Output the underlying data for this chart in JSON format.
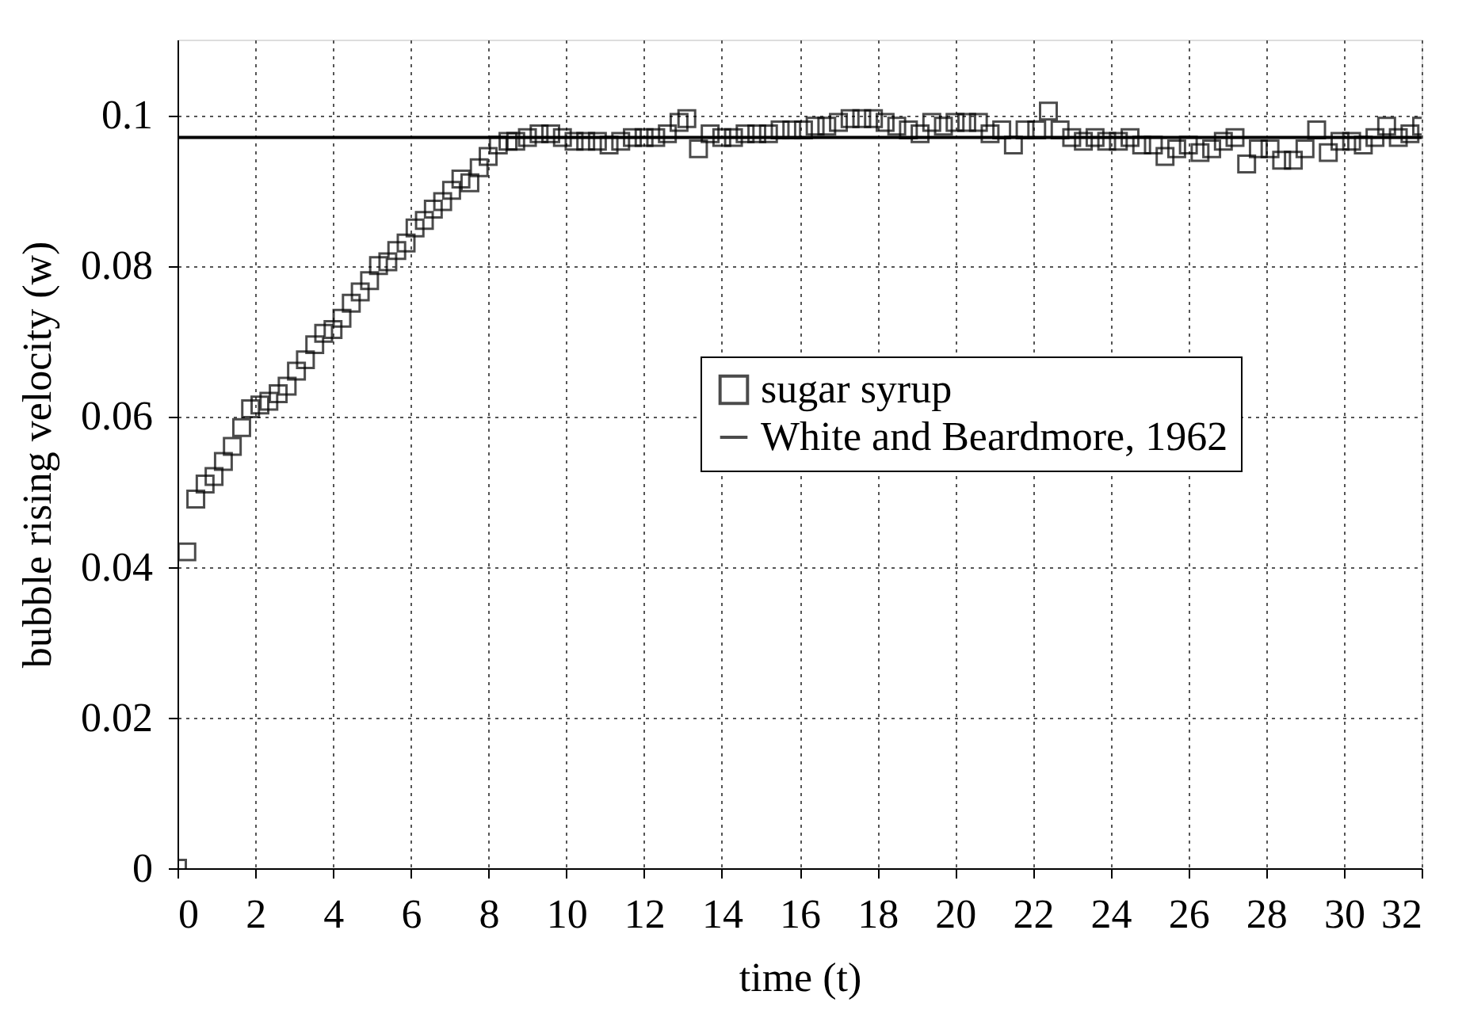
{
  "chart_data": {
    "type": "scatter",
    "xlabel": "time (t)",
    "ylabel": "bubble rising velocity (w)",
    "xlim": [
      0,
      32
    ],
    "ylim": [
      0,
      0.11
    ],
    "xticks": [
      0,
      2,
      4,
      6,
      8,
      10,
      12,
      14,
      16,
      18,
      20,
      22,
      24,
      26,
      28,
      30,
      32
    ],
    "yticks": [
      0,
      0.02,
      0.04,
      0.06,
      0.08,
      0.1
    ],
    "grid": true,
    "legend": "right",
    "series": [
      {
        "name": "sugar syrup",
        "marker": "square",
        "color": "#000000",
        "x": [
          0,
          0.24,
          0.47,
          0.71,
          0.94,
          1.18,
          1.41,
          1.65,
          1.88,
          2.12,
          2.35,
          2.59,
          2.82,
          3.06,
          3.29,
          3.53,
          3.76,
          4.0,
          4.23,
          4.47,
          4.7,
          4.94,
          5.17,
          5.41,
          5.64,
          5.88,
          6.11,
          6.35,
          6.58,
          6.82,
          7.05,
          7.29,
          7.52,
          7.76,
          7.99,
          8.25,
          8.5,
          8.7,
          9.0,
          9.3,
          9.6,
          9.9,
          10.2,
          10.5,
          10.8,
          11.1,
          11.4,
          11.7,
          12.0,
          12.3,
          12.6,
          12.9,
          13.1,
          13.4,
          13.7,
          14.0,
          14.3,
          14.6,
          14.9,
          15.2,
          15.5,
          15.8,
          16.1,
          16.4,
          16.7,
          17.0,
          17.3,
          17.6,
          17.9,
          18.2,
          18.5,
          18.8,
          19.1,
          19.4,
          19.7,
          20.0,
          20.3,
          20.6,
          20.9,
          21.2,
          21.5,
          21.8,
          22.1,
          22.4,
          22.7,
          23.0,
          23.3,
          23.6,
          23.9,
          24.2,
          24.5,
          24.8,
          25.1,
          25.4,
          25.7,
          26.0,
          26.3,
          26.6,
          26.9,
          27.2,
          27.5,
          27.8,
          28.1,
          28.4,
          28.7,
          29.0,
          29.3,
          29.6,
          29.9,
          30.2,
          30.5,
          30.8,
          31.1,
          31.4,
          31.7,
          32.0
        ],
        "values": [
          0,
          0.042,
          0.049,
          0.051,
          0.052,
          0.054,
          0.056,
          0.0585,
          0.061,
          0.0615,
          0.062,
          0.063,
          0.064,
          0.066,
          0.0675,
          0.0695,
          0.071,
          0.0715,
          0.073,
          0.075,
          0.0765,
          0.078,
          0.08,
          0.0805,
          0.082,
          0.083,
          0.085,
          0.086,
          0.0875,
          0.0885,
          0.09,
          0.0915,
          0.091,
          0.093,
          0.0945,
          0.096,
          0.0965,
          0.0965,
          0.097,
          0.0975,
          0.0975,
          0.097,
          0.0965,
          0.0965,
          0.0965,
          0.096,
          0.0965,
          0.097,
          0.097,
          0.097,
          0.0975,
          0.099,
          0.0995,
          0.0955,
          0.0975,
          0.097,
          0.097,
          0.0975,
          0.0975,
          0.0975,
          0.098,
          0.098,
          0.098,
          0.0985,
          0.0985,
          0.099,
          0.0995,
          0.0995,
          0.0995,
          0.099,
          0.0985,
          0.098,
          0.0975,
          0.099,
          0.0985,
          0.099,
          0.099,
          0.099,
          0.0975,
          0.098,
          0.096,
          0.098,
          0.098,
          0.1005,
          0.098,
          0.097,
          0.0965,
          0.097,
          0.0965,
          0.0965,
          0.097,
          0.096,
          0.096,
          0.0945,
          0.0955,
          0.096,
          0.095,
          0.0955,
          0.0965,
          0.097,
          0.0935,
          0.0955,
          0.0955,
          0.094,
          0.094,
          0.0955,
          0.098,
          0.095,
          0.0965,
          0.0965,
          0.096,
          0.097,
          0.0985,
          0.097,
          0.0975,
          0.0985
        ]
      },
      {
        "name": "White and Beardmore, 1962",
        "type": "line",
        "line_style": "solid",
        "color": "#000000",
        "x": [
          0,
          32
        ],
        "values": [
          0.097,
          0.097
        ]
      }
    ]
  }
}
